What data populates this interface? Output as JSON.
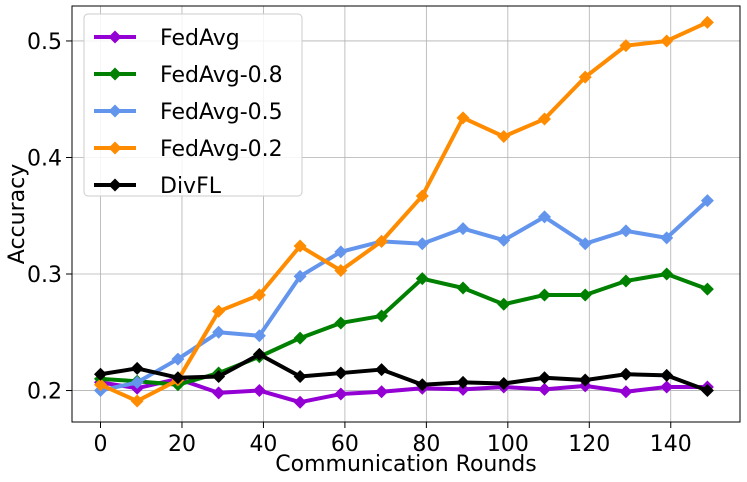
{
  "chart_data": {
    "type": "line",
    "title": "",
    "xlabel": "Communication Rounds",
    "ylabel": "Accuracy",
    "xlim": [
      -7,
      157
    ],
    "ylim": [
      0.173,
      0.53
    ],
    "x_ticks": [
      0,
      20,
      40,
      60,
      80,
      100,
      120,
      140
    ],
    "y_ticks": [
      0.2,
      0.3,
      0.4,
      0.5
    ],
    "grid": true,
    "legend_position": "top-left",
    "x": [
      0,
      9,
      19,
      29,
      39,
      49,
      59,
      69,
      79,
      89,
      99,
      109,
      119,
      129,
      139,
      149
    ],
    "series": [
      {
        "name": "FedAvg",
        "color": "#9400D3",
        "values": [
          0.207,
          0.202,
          0.21,
          0.198,
          0.2,
          0.19,
          0.197,
          0.199,
          0.202,
          0.201,
          0.203,
          0.201,
          0.204,
          0.199,
          0.203,
          0.203
        ]
      },
      {
        "name": "FedAvg-0.8",
        "color": "#008000",
        "values": [
          0.21,
          0.208,
          0.205,
          0.215,
          0.229,
          0.245,
          0.258,
          0.264,
          0.296,
          0.288,
          0.274,
          0.282,
          0.282,
          0.294,
          0.3,
          0.287
        ]
      },
      {
        "name": "FedAvg-0.5",
        "color": "#6495ED",
        "values": [
          0.2,
          0.207,
          0.227,
          0.25,
          0.247,
          0.298,
          0.319,
          0.328,
          0.326,
          0.339,
          0.329,
          0.349,
          0.326,
          0.337,
          0.331,
          0.363
        ]
      },
      {
        "name": "FedAvg-0.2",
        "color": "#FF8C00",
        "values": [
          0.205,
          0.191,
          0.209,
          0.268,
          0.282,
          0.324,
          0.303,
          0.328,
          0.367,
          0.434,
          0.418,
          0.433,
          0.469,
          0.496,
          0.5,
          0.516
        ]
      },
      {
        "name": "DivFL",
        "color": "#000000",
        "values": [
          0.214,
          0.219,
          0.211,
          0.212,
          0.231,
          0.212,
          0.215,
          0.218,
          0.205,
          0.207,
          0.206,
          0.211,
          0.209,
          0.214,
          0.213,
          0.2
        ]
      }
    ]
  }
}
